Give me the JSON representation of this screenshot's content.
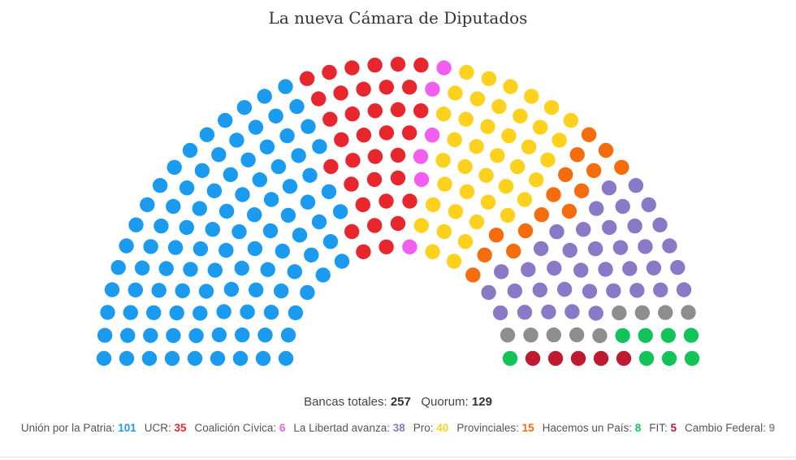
{
  "chart_data": {
    "type": "parliament",
    "title": "La nueva Cámara de Diputados",
    "total_seats": 257,
    "quorum": 129,
    "series": [
      {
        "name": "Unión por la Patria",
        "seats": 101,
        "color": "#1a9bf0"
      },
      {
        "name": "UCR",
        "seats": 35,
        "color": "#e8262e"
      },
      {
        "name": "Coalición Cívica",
        "seats": 6,
        "color": "#f25ef0"
      },
      {
        "name": "La Libertad avanza",
        "seats": 38,
        "color": "#8a79c7"
      },
      {
        "name": "Pro",
        "seats": 40,
        "color": "#fdd11e"
      },
      {
        "name": "Provinciales",
        "seats": 15,
        "color": "#f56c0c"
      },
      {
        "name": "Hacemos un País",
        "seats": 8,
        "color": "#12c35a"
      },
      {
        "name": "FIT",
        "seats": 5,
        "color": "#bf1a2f"
      },
      {
        "name": "Cambio Federal",
        "seats": 9,
        "color": "#8e8e8e"
      }
    ],
    "arc_order": [
      "Unión por la Patria",
      "UCR",
      "Coalición Cívica",
      "Pro",
      "Provinciales",
      "La Libertad avanza",
      "Cambio Federal",
      "Hacemos un País",
      "FIT"
    ]
  },
  "totals": {
    "seats_label": "Bancas totales:",
    "seats_value": "257",
    "quorum_label": "Quorum:",
    "quorum_value": "129"
  }
}
